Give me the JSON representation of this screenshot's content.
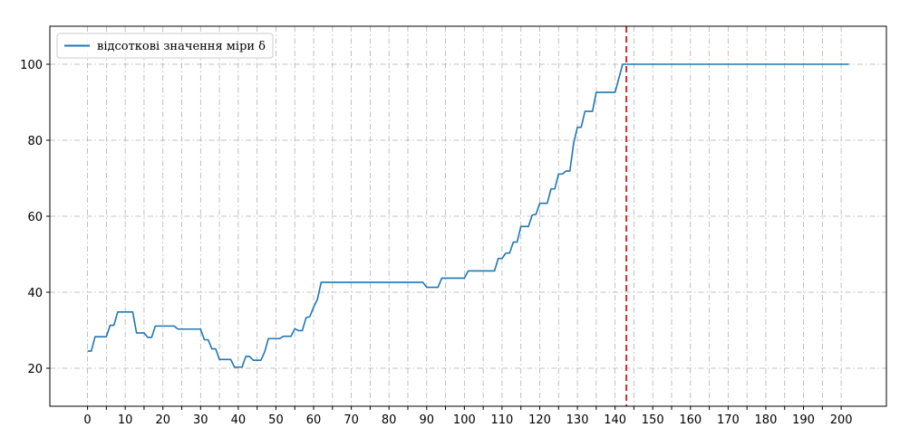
{
  "chart_data": {
    "type": "line",
    "title": "",
    "xlabel": "",
    "ylabel": "",
    "xlim": [
      -10,
      212
    ],
    "ylim": [
      10,
      110
    ],
    "x_ticks": [
      0,
      10,
      20,
      30,
      40,
      50,
      60,
      70,
      80,
      90,
      100,
      110,
      120,
      130,
      140,
      150,
      160,
      170,
      180,
      190,
      200
    ],
    "x_minor_ticks": [
      5,
      15,
      25,
      35,
      45,
      55,
      65,
      75,
      85,
      95,
      105,
      115,
      125,
      135,
      145,
      155,
      165,
      175,
      185,
      195
    ],
    "y_ticks": [
      20,
      40,
      60,
      80,
      100
    ],
    "grid": true,
    "legend_position": "top-left",
    "legend_label": "відсоткові значення міри δ",
    "series": [
      {
        "name": "відсоткові значення міри δ",
        "color": "#1f77b4",
        "points": [
          [
            0,
            24.5
          ],
          [
            1,
            24.5
          ],
          [
            2,
            28.3
          ],
          [
            3,
            28.3
          ],
          [
            4,
            28.3
          ],
          [
            5,
            28.3
          ],
          [
            6,
            31.3
          ],
          [
            7,
            31.3
          ],
          [
            8,
            34.8
          ],
          [
            9,
            34.8
          ],
          [
            10,
            34.8
          ],
          [
            11,
            34.8
          ],
          [
            12,
            34.8
          ],
          [
            13,
            29.3
          ],
          [
            14,
            29.3
          ],
          [
            15,
            29.3
          ],
          [
            16,
            28.1
          ],
          [
            17,
            28.1
          ],
          [
            18,
            31.1
          ],
          [
            19,
            31.1
          ],
          [
            20,
            31.1
          ],
          [
            21,
            31.1
          ],
          [
            22,
            31.1
          ],
          [
            23,
            31.1
          ],
          [
            24,
            30.3
          ],
          [
            25,
            30.3
          ],
          [
            26,
            30.3
          ],
          [
            27,
            30.3
          ],
          [
            28,
            30.3
          ],
          [
            29,
            30.3
          ],
          [
            30,
            30.3
          ],
          [
            31,
            27.5
          ],
          [
            32,
            27.5
          ],
          [
            33,
            25.1
          ],
          [
            34,
            25.1
          ],
          [
            35,
            22.3
          ],
          [
            36,
            22.3
          ],
          [
            37,
            22.3
          ],
          [
            38,
            22.3
          ],
          [
            39,
            20.3
          ],
          [
            40,
            20.3
          ],
          [
            41,
            20.3
          ],
          [
            42,
            23.1
          ],
          [
            43,
            23.1
          ],
          [
            44,
            22.1
          ],
          [
            45,
            22.1
          ],
          [
            46,
            22.1
          ],
          [
            47,
            24.3
          ],
          [
            48,
            27.8
          ],
          [
            49,
            27.8
          ],
          [
            50,
            27.8
          ],
          [
            51,
            27.8
          ],
          [
            52,
            28.4
          ],
          [
            53,
            28.4
          ],
          [
            54,
            28.4
          ],
          [
            55,
            30.4
          ],
          [
            56,
            29.9
          ],
          [
            57,
            29.9
          ],
          [
            58,
            33.3
          ],
          [
            59,
            33.6
          ],
          [
            60,
            36.1
          ],
          [
            61,
            38.1
          ],
          [
            62,
            42.6
          ],
          [
            63,
            42.6
          ],
          [
            64,
            42.6
          ],
          [
            66,
            42.6
          ],
          [
            70,
            42.6
          ],
          [
            75,
            42.6
          ],
          [
            80,
            42.6
          ],
          [
            85,
            42.6
          ],
          [
            89,
            42.6
          ],
          [
            90,
            41.3
          ],
          [
            91,
            41.3
          ],
          [
            92,
            41.3
          ],
          [
            93,
            41.3
          ],
          [
            94,
            43.7
          ],
          [
            95,
            43.7
          ],
          [
            96,
            43.7
          ],
          [
            97,
            43.7
          ],
          [
            98,
            43.7
          ],
          [
            99,
            43.7
          ],
          [
            100,
            43.7
          ],
          [
            101,
            45.6
          ],
          [
            102,
            45.6
          ],
          [
            103,
            45.6
          ],
          [
            104,
            45.6
          ],
          [
            105,
            45.6
          ],
          [
            106,
            45.6
          ],
          [
            107,
            45.6
          ],
          [
            108,
            45.6
          ],
          [
            109,
            48.9
          ],
          [
            110,
            48.9
          ],
          [
            111,
            50.3
          ],
          [
            112,
            50.3
          ],
          [
            113,
            53.2
          ],
          [
            114,
            53.2
          ],
          [
            115,
            57.3
          ],
          [
            116,
            57.3
          ],
          [
            117,
            57.3
          ],
          [
            118,
            60.3
          ],
          [
            119,
            60.5
          ],
          [
            120,
            63.4
          ],
          [
            121,
            63.4
          ],
          [
            122,
            63.4
          ],
          [
            123,
            67.2
          ],
          [
            124,
            67.2
          ],
          [
            125,
            71.1
          ],
          [
            126,
            71.1
          ],
          [
            127,
            71.9
          ],
          [
            128,
            71.9
          ],
          [
            129,
            79.2
          ],
          [
            130,
            83.4
          ],
          [
            131,
            83.4
          ],
          [
            132,
            87.6
          ],
          [
            133,
            87.6
          ],
          [
            134,
            87.6
          ],
          [
            135,
            92.6
          ],
          [
            136,
            92.6
          ],
          [
            137,
            92.6
          ],
          [
            138,
            92.6
          ],
          [
            139,
            92.6
          ],
          [
            140,
            92.6
          ],
          [
            142,
            100
          ],
          [
            150,
            100
          ],
          [
            160,
            100
          ],
          [
            170,
            100
          ],
          [
            180,
            100
          ],
          [
            190,
            100
          ],
          [
            200,
            100
          ],
          [
            202,
            100
          ]
        ]
      }
    ],
    "vertical_line": {
      "x": 143,
      "color": "#d62728",
      "style": "dashed"
    }
  }
}
